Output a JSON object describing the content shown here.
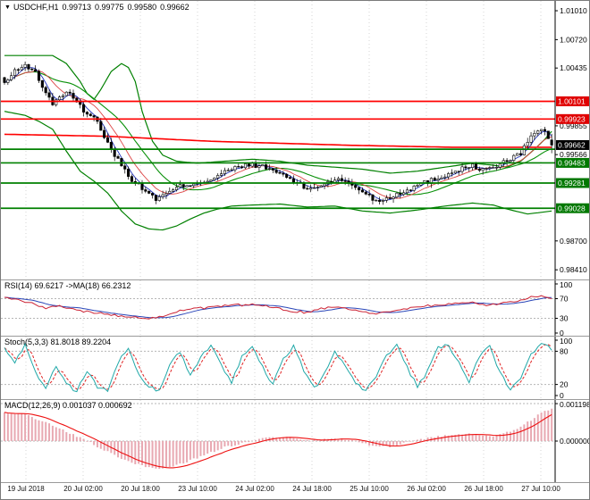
{
  "header": {
    "collapse_icon": "▼",
    "symbol": "USDCHF,H1",
    "open": "0.99713",
    "high": "0.99775",
    "low": "0.99580",
    "close": "0.99662"
  },
  "colors": {
    "grid": "#d6d6d6",
    "sublevel": "#b5b5b5",
    "axis_line": "#000000",
    "text": "#000000",
    "candle_up_fill": "#ffffff",
    "candle_down_fill": "#000000",
    "candle_border": "#000000",
    "bollinger_green": "#008000",
    "ma_mid_green": "#089008",
    "ma_blue": "#2233bb",
    "ma_thin_red": "#dd4444",
    "ma_long_red": "#ff0000",
    "level_red": "#ff0000",
    "level_green": "#008000",
    "badge_red": "#e00000",
    "badge_green": "#007800",
    "badge_black": "#000000",
    "badge_text": "#ffffff",
    "rsi_line": "#cc2233",
    "rsi_ma": "#2a46b8",
    "stoch_k": "#20a8a8",
    "stoch_d": "#e02222",
    "macd_hist": "#e8a9b2",
    "macd_signal": "#ee1111"
  },
  "x_axis": {
    "tick_x": [
      28,
      92,
      156,
      220,
      284,
      348,
      412,
      476,
      540,
      604
    ],
    "labels": [
      "19 Jul 2018",
      "20 Jul 02:00",
      "20 Jul 18:00",
      "23 Jul 10:00",
      "24 Jul 02:00",
      "24 Jul 18:00",
      "25 Jul 10:00",
      "26 Jul 02:00",
      "26 Jul 18:00",
      "27 Jul 10:00"
    ]
  },
  "chart_data": [
    {
      "type": "candlestick",
      "symbol": "USDCHF",
      "timeframe": "H1",
      "current_ohlc": {
        "open": 0.99713,
        "high": 0.99775,
        "low": 0.9958,
        "close": 0.99662
      },
      "n_candles": 160,
      "ylim": [
        0.98365,
        1.01055
      ],
      "close_waypoints": [
        [
          0,
          1.0028
        ],
        [
          2,
          1.0036
        ],
        [
          4,
          1.0043
        ],
        [
          6,
          1.0045
        ],
        [
          8,
          1.0044
        ],
        [
          10,
          1.0032
        ],
        [
          12,
          1.0018
        ],
        [
          14,
          1.0008
        ],
        [
          16,
          1.0015
        ],
        [
          18,
          1.0019
        ],
        [
          20,
          1.0013
        ],
        [
          22,
          1.0005
        ],
        [
          24,
          0.9998
        ],
        [
          26,
          0.9994
        ],
        [
          28,
          0.9982
        ],
        [
          30,
          0.997
        ],
        [
          32,
          0.9956
        ],
        [
          34,
          0.9946
        ],
        [
          36,
          0.9936
        ],
        [
          38,
          0.9928
        ],
        [
          40,
          0.9923
        ],
        [
          42,
          0.9918
        ],
        [
          44,
          0.9912
        ],
        [
          46,
          0.9915
        ],
        [
          48,
          0.9919
        ],
        [
          50,
          0.9923
        ],
        [
          52,
          0.9926
        ],
        [
          54,
          0.9927
        ],
        [
          56,
          0.9929
        ],
        [
          58,
          0.993
        ],
        [
          60,
          0.9932
        ],
        [
          64,
          0.9939
        ],
        [
          68,
          0.9944
        ],
        [
          72,
          0.9947
        ],
        [
          76,
          0.9943
        ],
        [
          80,
          0.9938
        ],
        [
          84,
          0.993
        ],
        [
          88,
          0.9922
        ],
        [
          92,
          0.9926
        ],
        [
          96,
          0.9932
        ],
        [
          100,
          0.9928
        ],
        [
          104,
          0.992
        ],
        [
          108,
          0.991
        ],
        [
          112,
          0.9914
        ],
        [
          116,
          0.992
        ],
        [
          120,
          0.9926
        ],
        [
          124,
          0.9931
        ],
        [
          128,
          0.9936
        ],
        [
          132,
          0.9942
        ],
        [
          136,
          0.9945
        ],
        [
          140,
          0.9941
        ],
        [
          144,
          0.9947
        ],
        [
          148,
          0.9954
        ],
        [
          150,
          0.9958
        ],
        [
          152,
          0.997
        ],
        [
          154,
          0.9979
        ],
        [
          156,
          0.9982
        ],
        [
          158,
          0.9974
        ],
        [
          159,
          0.99662
        ]
      ],
      "bollinger": {
        "upper_waypoints": [
          [
            0,
            1.0056
          ],
          [
            14,
            1.0056
          ],
          [
            18,
            1.0048
          ],
          [
            22,
            1.003
          ],
          [
            24,
            1.0018
          ],
          [
            26,
            1.0012
          ],
          [
            28,
            1.0022
          ],
          [
            31,
            1.004
          ],
          [
            34,
            1.0048
          ],
          [
            36,
            1.0044
          ],
          [
            38,
            1.003
          ],
          [
            40,
            1.0
          ],
          [
            43,
            0.997
          ],
          [
            46,
            0.9956
          ],
          [
            50,
            0.995
          ],
          [
            56,
            0.9948
          ],
          [
            64,
            0.995
          ],
          [
            72,
            0.9952
          ],
          [
            80,
            0.995
          ],
          [
            88,
            0.9946
          ],
          [
            96,
            0.9944
          ],
          [
            104,
            0.9942
          ],
          [
            112,
            0.9938
          ],
          [
            120,
            0.994
          ],
          [
            128,
            0.9944
          ],
          [
            136,
            0.9948
          ],
          [
            142,
            0.9946
          ],
          [
            146,
            0.9944
          ],
          [
            150,
            0.995
          ],
          [
            154,
            0.9962
          ],
          [
            157,
            0.9972
          ],
          [
            159,
            0.998
          ]
        ],
        "lower_waypoints": [
          [
            0,
            1.0
          ],
          [
            6,
            0.9996
          ],
          [
            10,
            0.999
          ],
          [
            14,
            0.9982
          ],
          [
            18,
            0.996
          ],
          [
            22,
            0.994
          ],
          [
            26,
            0.993
          ],
          [
            30,
            0.9918
          ],
          [
            34,
            0.99
          ],
          [
            38,
            0.9887
          ],
          [
            42,
            0.9882
          ],
          [
            46,
            0.9881
          ],
          [
            50,
            0.9885
          ],
          [
            54,
            0.9892
          ],
          [
            58,
            0.9898
          ],
          [
            62,
            0.9902
          ],
          [
            66,
            0.9905
          ],
          [
            72,
            0.9906
          ],
          [
            80,
            0.9907
          ],
          [
            88,
            0.9904
          ],
          [
            96,
            0.9905
          ],
          [
            104,
            0.99
          ],
          [
            112,
            0.9898
          ],
          [
            120,
            0.9901
          ],
          [
            128,
            0.9905
          ],
          [
            136,
            0.9908
          ],
          [
            142,
            0.9906
          ],
          [
            146,
            0.9902
          ],
          [
            152,
            0.9897
          ],
          [
            159,
            0.99
          ]
        ]
      },
      "ma_long_red_waypoints": [
        [
          0,
          0.9977
        ],
        [
          30,
          0.9975
        ],
        [
          60,
          0.997
        ],
        [
          100,
          0.9966
        ],
        [
          130,
          0.9964
        ],
        [
          159,
          0.9964
        ]
      ],
      "levels": {
        "red": [
          1.00101,
          0.99923
        ],
        "green": [
          0.9962,
          0.99483,
          0.99281,
          0.99028
        ]
      },
      "y_axis": {
        "plain_ticks": [
          1.0101,
          1.0072,
          1.00435,
          0.99855,
          0.99566,
          0.987,
          0.9841
        ],
        "badges": [
          {
            "value": 1.00101,
            "color": "red"
          },
          {
            "value": 0.99923,
            "color": "red"
          },
          {
            "value": 0.99662,
            "color": "black"
          },
          {
            "value": 0.99483,
            "color": "green"
          },
          {
            "value": 0.99281,
            "color": "green"
          },
          {
            "value": 0.99028,
            "color": "green"
          }
        ]
      }
    },
    {
      "type": "line",
      "name": "RSI",
      "label": "RSI(14) 69.6217 ->MA(18) 66.2312",
      "period": 14,
      "value": 69.6217,
      "ma_period": 18,
      "ma_value": 66.2312,
      "ylim": [
        0,
        100
      ],
      "level_lines": [
        70,
        30
      ],
      "axis_ticks": [
        100,
        70,
        30,
        0
      ],
      "waypoints": [
        [
          0,
          72
        ],
        [
          4,
          68
        ],
        [
          8,
          60
        ],
        [
          12,
          50
        ],
        [
          16,
          55
        ],
        [
          20,
          48
        ],
        [
          24,
          44
        ],
        [
          28,
          40
        ],
        [
          32,
          36
        ],
        [
          36,
          34
        ],
        [
          40,
          32
        ],
        [
          44,
          30
        ],
        [
          48,
          40
        ],
        [
          52,
          46
        ],
        [
          56,
          50
        ],
        [
          60,
          52
        ],
        [
          64,
          55
        ],
        [
          68,
          57
        ],
        [
          72,
          58
        ],
        [
          76,
          54
        ],
        [
          80,
          50
        ],
        [
          84,
          44
        ],
        [
          88,
          42
        ],
        [
          92,
          50
        ],
        [
          96,
          54
        ],
        [
          100,
          50
        ],
        [
          104,
          44
        ],
        [
          108,
          38
        ],
        [
          112,
          44
        ],
        [
          116,
          50
        ],
        [
          120,
          54
        ],
        [
          124,
          56
        ],
        [
          128,
          58
        ],
        [
          132,
          61
        ],
        [
          136,
          62
        ],
        [
          140,
          57
        ],
        [
          144,
          60
        ],
        [
          148,
          64
        ],
        [
          152,
          72
        ],
        [
          155,
          76
        ],
        [
          157,
          73
        ],
        [
          159,
          69.6217
        ]
      ]
    },
    {
      "type": "line",
      "name": "Stochastic",
      "label": "Stoch(5,3,3) 81.8018 89.2204",
      "k_value": 81.8018,
      "d_value": 89.2204,
      "ylim": [
        0,
        100
      ],
      "level_lines": [
        80,
        20
      ],
      "axis_ticks": [
        100,
        80,
        20,
        0
      ],
      "k_waypoints": [
        [
          0,
          85
        ],
        [
          3,
          60
        ],
        [
          6,
          90
        ],
        [
          9,
          40
        ],
        [
          12,
          15
        ],
        [
          15,
          55
        ],
        [
          18,
          20
        ],
        [
          21,
          8
        ],
        [
          24,
          45
        ],
        [
          27,
          15
        ],
        [
          30,
          10
        ],
        [
          33,
          60
        ],
        [
          36,
          85
        ],
        [
          39,
          40
        ],
        [
          42,
          15
        ],
        [
          45,
          10
        ],
        [
          48,
          55
        ],
        [
          51,
          80
        ],
        [
          54,
          35
        ],
        [
          57,
          70
        ],
        [
          60,
          90
        ],
        [
          63,
          55
        ],
        [
          66,
          25
        ],
        [
          69,
          70
        ],
        [
          72,
          88
        ],
        [
          75,
          50
        ],
        [
          78,
          20
        ],
        [
          81,
          65
        ],
        [
          84,
          90
        ],
        [
          87,
          45
        ],
        [
          90,
          12
        ],
        [
          93,
          40
        ],
        [
          96,
          80
        ],
        [
          99,
          55
        ],
        [
          102,
          20
        ],
        [
          105,
          10
        ],
        [
          108,
          35
        ],
        [
          111,
          75
        ],
        [
          114,
          90
        ],
        [
          117,
          50
        ],
        [
          120,
          15
        ],
        [
          123,
          45
        ],
        [
          126,
          85
        ],
        [
          129,
          92
        ],
        [
          132,
          60
        ],
        [
          135,
          25
        ],
        [
          138,
          70
        ],
        [
          141,
          88
        ],
        [
          144,
          40
        ],
        [
          147,
          10
        ],
        [
          150,
          30
        ],
        [
          153,
          75
        ],
        [
          156,
          95
        ],
        [
          158,
          88
        ],
        [
          159,
          81.8018
        ]
      ]
    },
    {
      "type": "macd",
      "name": "MACD",
      "label": "MACD(12,26,9) 0.001037 0.000692",
      "macd_value": 0.001037,
      "signal_value": 0.000692,
      "axis_ticks": [
        0.0011985,
        0.0
      ],
      "macd_waypoints": [
        [
          0,
          0.0009
        ],
        [
          6,
          0.00085
        ],
        [
          12,
          0.0006
        ],
        [
          18,
          0.0003
        ],
        [
          24,
          0.0
        ],
        [
          30,
          -0.00035
        ],
        [
          36,
          -0.00065
        ],
        [
          42,
          -0.00085
        ],
        [
          46,
          -0.00088
        ],
        [
          52,
          -0.0007
        ],
        [
          58,
          -0.00045
        ],
        [
          64,
          -0.0002
        ],
        [
          70,
          -5e-05
        ],
        [
          76,
          0.0001
        ],
        [
          82,
          0.00012
        ],
        [
          88,
          0.0
        ],
        [
          94,
          8e-05
        ],
        [
          100,
          5e-05
        ],
        [
          106,
          -0.00012
        ],
        [
          112,
          -0.00018
        ],
        [
          118,
          0.0
        ],
        [
          124,
          0.00012
        ],
        [
          130,
          0.0002
        ],
        [
          136,
          0.00022
        ],
        [
          140,
          0.00015
        ],
        [
          144,
          0.0002
        ],
        [
          148,
          0.00035
        ],
        [
          152,
          0.0006
        ],
        [
          156,
          0.0009
        ],
        [
          159,
          0.001037
        ]
      ]
    }
  ]
}
